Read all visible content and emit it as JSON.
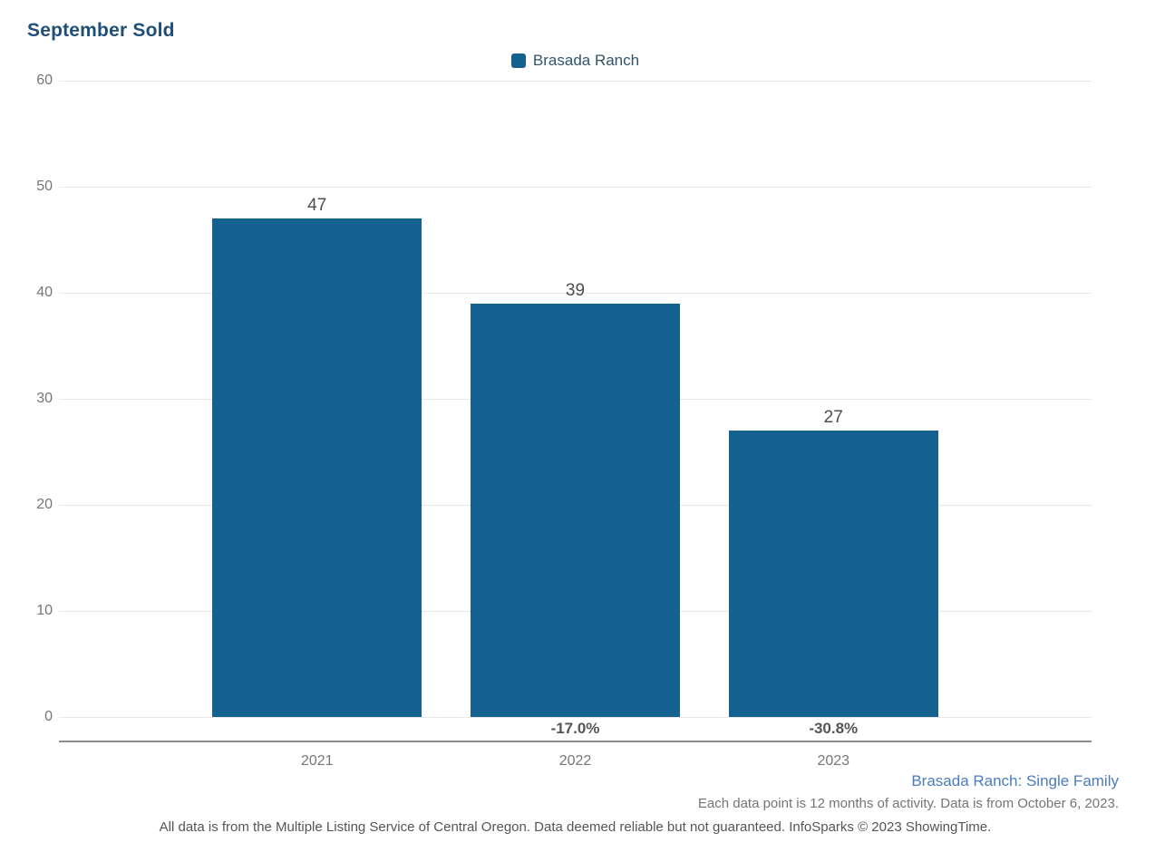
{
  "title": "September Sold",
  "legend": {
    "label": "Brasada Ranch"
  },
  "colors": {
    "bar": "#15618F",
    "title_text": "#1F4E79",
    "legend_text": "#33536B",
    "axis_text": "#767676",
    "value_text": "#4D4D4D",
    "pct_text": "#555555",
    "gridline": "#E8E8E8",
    "axis_line": "#8C8C8C",
    "footnote_blue": "#4A7CBF",
    "footnote_gray": "#757575",
    "disclaimer_text": "#555555"
  },
  "chart_data": {
    "type": "bar",
    "title": "September Sold",
    "categories": [
      "2021",
      "2022",
      "2023"
    ],
    "series": [
      {
        "name": "Brasada Ranch",
        "values": [
          47,
          39,
          27
        ]
      }
    ],
    "value_labels": [
      "47",
      "39",
      "27"
    ],
    "change_labels": [
      "",
      "-17.0%",
      "-30.8%"
    ],
    "yticks": [
      0,
      10,
      20,
      30,
      40,
      50,
      60
    ],
    "ylim": [
      0,
      60
    ],
    "xlabel": "",
    "ylabel": "",
    "grid": "horizontal",
    "legend_position": "top-center",
    "bar_color": "#15618F"
  },
  "footnotes": {
    "series_note": "Brasada Ranch: Single Family",
    "data_note": "Each data point is 12 months of activity. Data is from October 6, 2023.",
    "disclaimer": "All data is from the Multiple Listing Service of Central Oregon. Data deemed reliable but not guaranteed. InfoSparks © 2023 ShowingTime."
  }
}
